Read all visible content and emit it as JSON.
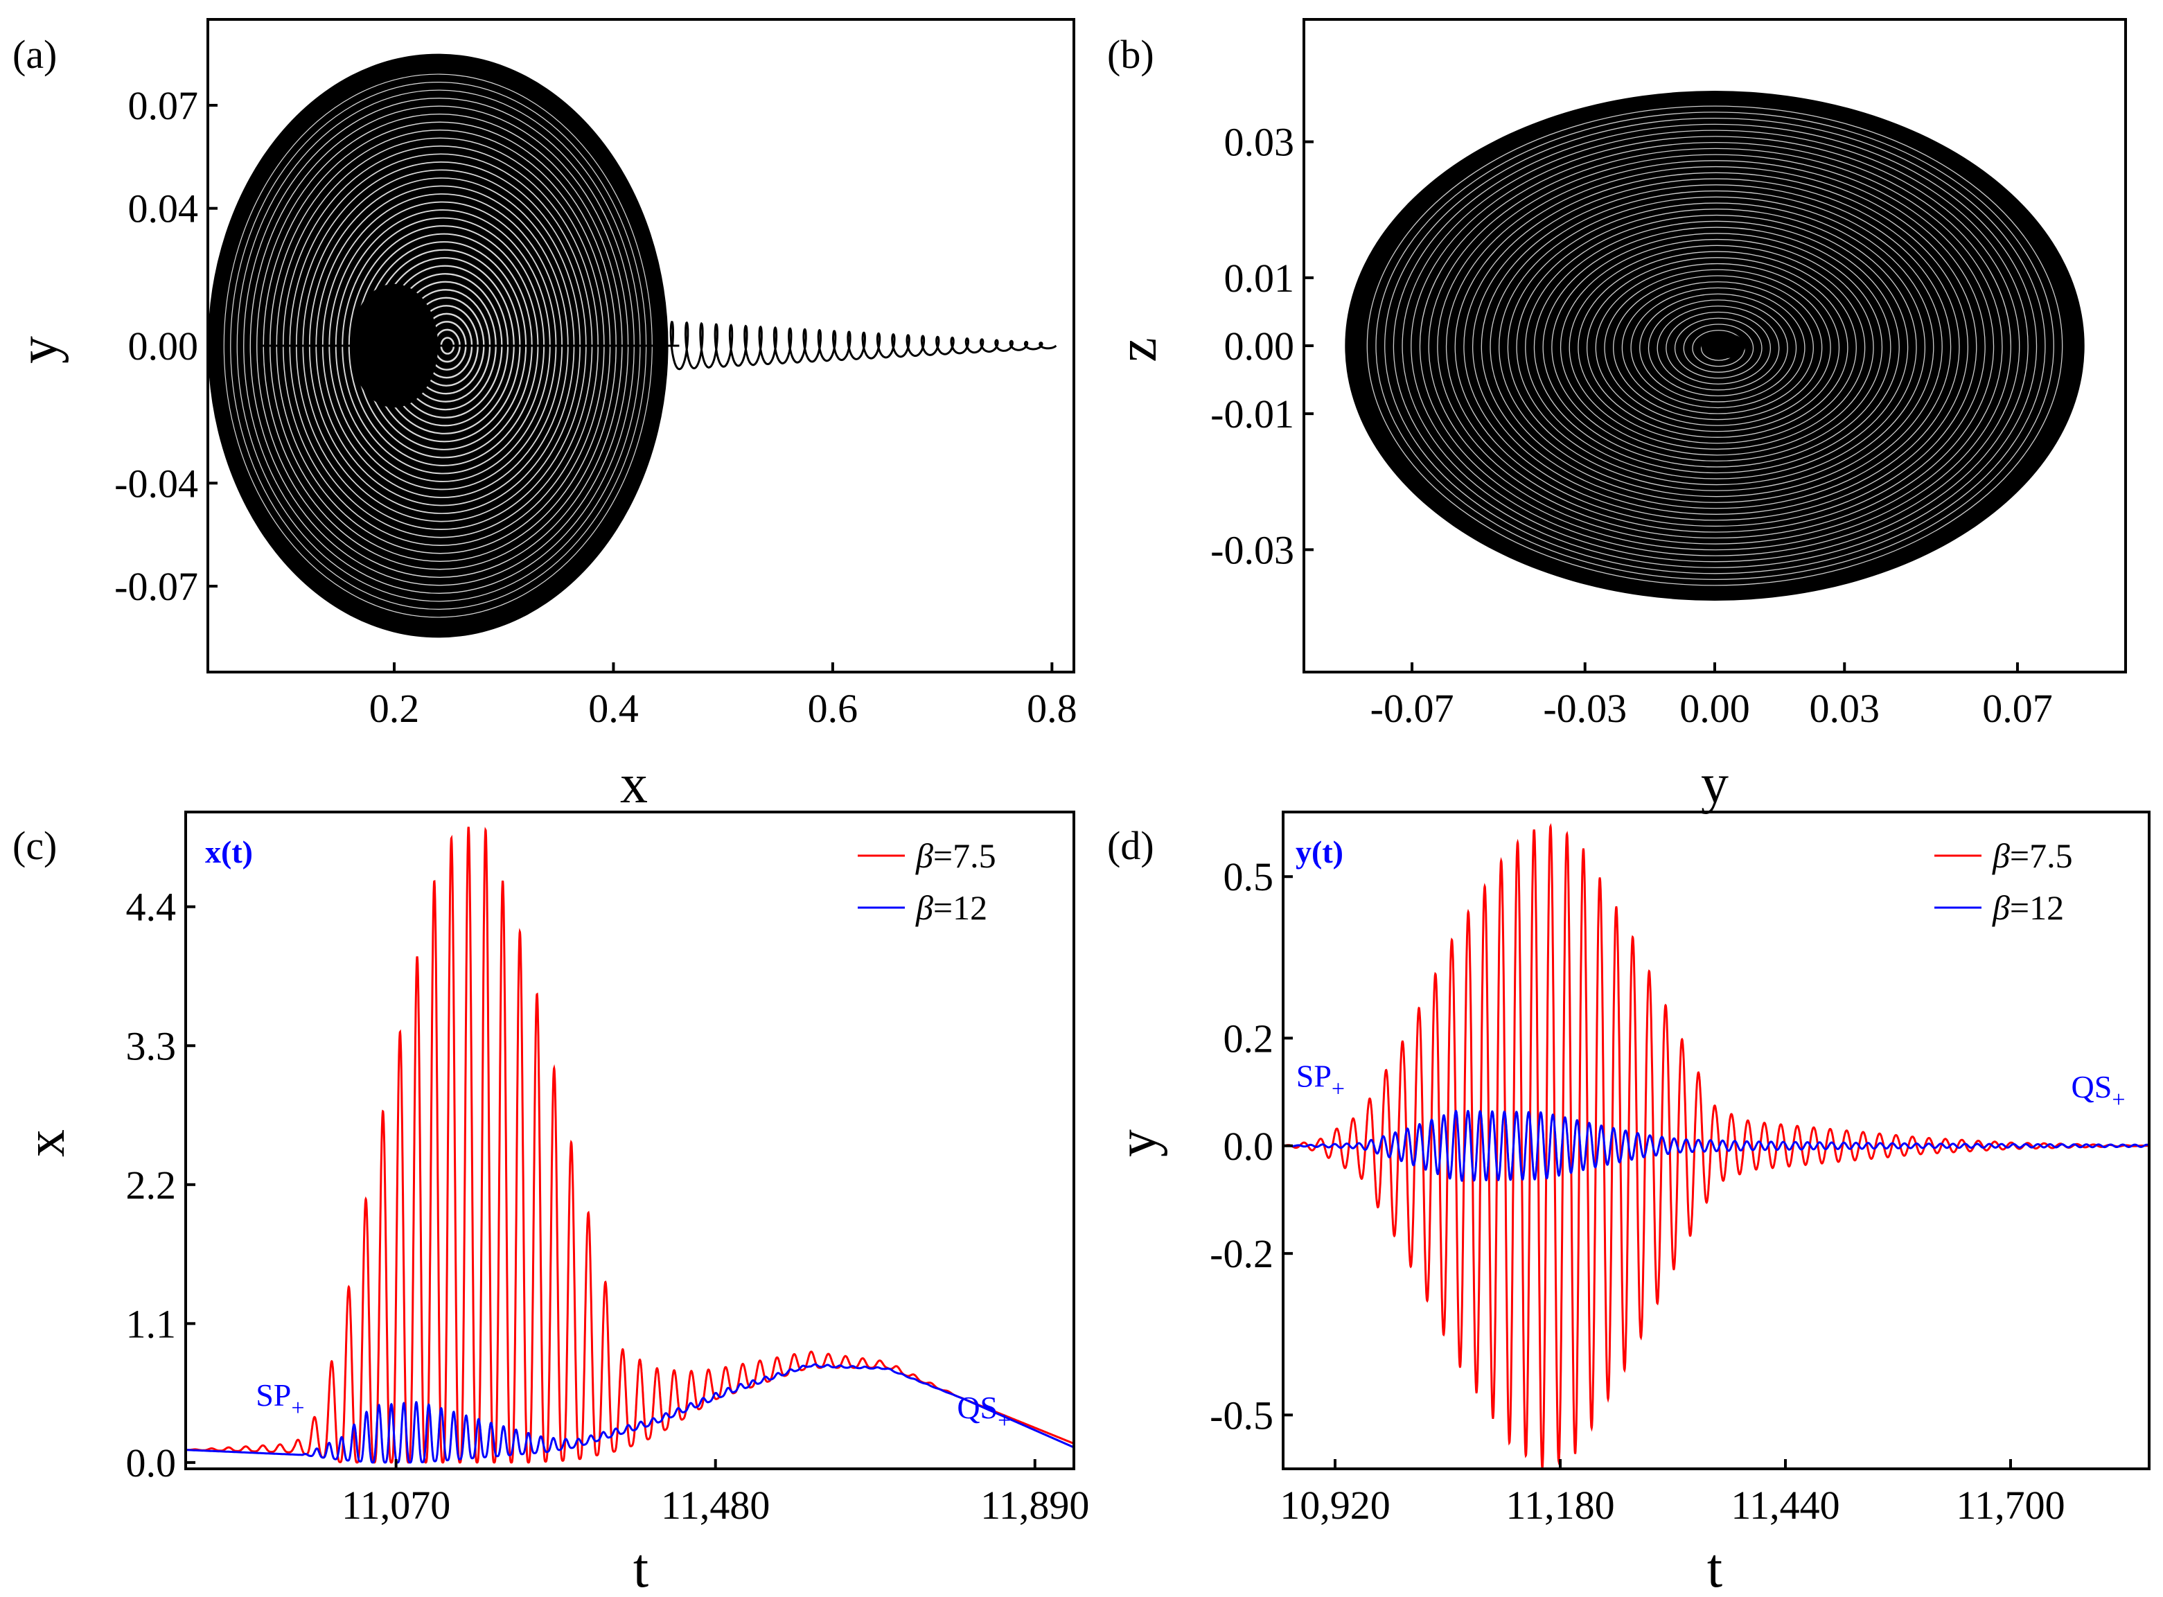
{
  "chart_data": [
    {
      "panel_label": "(a)",
      "type": "line",
      "description_series": "phase portrait x-y",
      "xlabel": "x",
      "ylabel": "y",
      "xlim": [
        0.03,
        0.82
      ],
      "ylim": [
        -0.095,
        0.095
      ],
      "xticks": [
        0.2,
        0.4,
        0.6,
        0.8
      ],
      "xtick_labels": [
        "0.2",
        "0.4",
        "0.6",
        "0.8"
      ],
      "yticks": [
        -0.07,
        -0.04,
        0.0,
        0.04,
        0.07
      ],
      "ytick_labels": [
        "-0.07",
        "-0.04",
        "0.00",
        "0.04",
        "0.07"
      ],
      "orbit": {
        "center_x": 0.24,
        "radius_x": 0.21,
        "radius_y": 0.085,
        "tail_end_x": 0.8,
        "tail_half_height": 0.007
      },
      "color": "#000000"
    },
    {
      "panel_label": "(b)",
      "type": "line",
      "description_series": "phase portrait y-z",
      "xlabel": "y",
      "ylabel": "z",
      "xlim": [
        -0.095,
        0.095
      ],
      "ylim": [
        -0.048,
        0.048
      ],
      "xticks": [
        -0.07,
        -0.03,
        0.0,
        0.03,
        0.07
      ],
      "xtick_labels": [
        "-0.07",
        "-0.03",
        "0.00",
        "0.03",
        "0.07"
      ],
      "yticks": [
        -0.03,
        -0.01,
        0.0,
        0.01,
        0.03
      ],
      "ytick_labels": [
        "-0.03",
        "-0.01",
        "0.00",
        "0.01",
        "0.03"
      ],
      "orbit": {
        "center_x": 0.0,
        "radius_x": 0.0855,
        "radius_y": 0.0375
      },
      "color": "#000000"
    },
    {
      "panel_label": "(c)",
      "type": "line",
      "corner_label": "x(t)",
      "xlabel": "t",
      "ylabel": "x",
      "xlim": [
        10800,
        11940
      ],
      "ylim": [
        -0.05,
        5.15
      ],
      "xticks": [
        11070,
        11480,
        11890
      ],
      "xtick_labels": [
        "11,070",
        "11,480",
        "11,890"
      ],
      "yticks": [
        0.0,
        1.1,
        2.2,
        3.3,
        4.4
      ],
      "ytick_labels": [
        "0.0",
        "1.1",
        "2.2",
        "3.3",
        "4.4"
      ],
      "series": [
        {
          "name": "β=7.5",
          "symbol": "β",
          "value_label": "=7.5",
          "color": "#ff0000",
          "envelope_points_t": [
            10800,
            10940,
            10970,
            11000,
            11060,
            11130,
            11180,
            11240,
            11300,
            11360,
            11400,
            11440,
            11480,
            11600,
            11700,
            11800,
            11940
          ],
          "envelope_points_peak": [
            0.1,
            0.15,
            0.4,
            1.1,
            3.0,
            4.9,
            5.1,
            4.0,
            2.4,
            0.9,
            0.75,
            0.72,
            0.74,
            0.88,
            0.8,
            0.5,
            0.15
          ],
          "baseline_points": [
            0.1,
            0.08,
            0.05,
            0.0,
            0.0,
            0.0,
            0.0,
            0.0,
            0.02,
            0.1,
            0.2,
            0.35,
            0.5,
            0.75,
            0.75,
            0.5,
            0.15
          ],
          "period": 22
        },
        {
          "name": "β=12",
          "symbol": "β",
          "value_label": "=12",
          "color": "#0000ff",
          "envelope_points_t": [
            10800,
            10950,
            11000,
            11040,
            11100,
            11200,
            11260,
            11300,
            11400,
            11500,
            11600,
            11700,
            11800,
            11940
          ],
          "envelope_points_peak": [
            0.1,
            0.06,
            0.2,
            0.45,
            0.48,
            0.3,
            0.2,
            0.18,
            0.35,
            0.6,
            0.78,
            0.75,
            0.5,
            0.12
          ],
          "baseline_points": [
            0.1,
            0.06,
            0.02,
            0.0,
            0.0,
            0.05,
            0.08,
            0.12,
            0.3,
            0.55,
            0.76,
            0.74,
            0.5,
            0.12
          ],
          "period": 16
        }
      ],
      "annotations": [
        {
          "text": "SP",
          "subscript": "+",
          "t": 10890,
          "value": 0.45
        },
        {
          "text": "QS",
          "subscript": "+",
          "t": 11790,
          "value": 0.35
        }
      ],
      "legend": "top-right"
    },
    {
      "panel_label": "(d)",
      "type": "line",
      "corner_label": "y(t)",
      "xlabel": "t",
      "ylabel": "y",
      "xlim": [
        10860,
        11860
      ],
      "ylim": [
        -0.6,
        0.62
      ],
      "xticks": [
        10920,
        11180,
        11440,
        11700
      ],
      "xtick_labels": [
        "10,920",
        "11,180",
        "11,440",
        "11,700"
      ],
      "yticks": [
        -0.5,
        -0.2,
        0.0,
        0.2,
        0.5
      ],
      "ytick_labels": [
        "-0.5",
        "-0.2",
        "0.0",
        "0.2",
        "0.5"
      ],
      "series": [
        {
          "name": "β=7.5",
          "symbol": "β",
          "value_label": "=7.5",
          "color": "#ff0000",
          "envelope_points_t": [
            10860,
            10900,
            10950,
            11000,
            11060,
            11120,
            11160,
            11200,
            11260,
            11320,
            11360,
            11400,
            11500,
            11600,
            11700,
            11860
          ],
          "envelope_amp": [
            0.0,
            0.01,
            0.06,
            0.2,
            0.4,
            0.55,
            0.6,
            0.57,
            0.4,
            0.2,
            0.07,
            0.045,
            0.03,
            0.015,
            0.006,
            0.0
          ],
          "period": 19
        },
        {
          "name": "β=12",
          "symbol": "β",
          "value_label": "=12",
          "color": "#0000ff",
          "envelope_points_t": [
            10860,
            10950,
            11000,
            11060,
            11160,
            11220,
            11280,
            11320,
            11400,
            11500,
            11600,
            11860
          ],
          "envelope_amp": [
            0.0,
            0.005,
            0.03,
            0.065,
            0.062,
            0.04,
            0.02,
            0.012,
            0.008,
            0.006,
            0.004,
            0.002
          ],
          "period": 14
        }
      ],
      "annotations": [
        {
          "text": "SP",
          "subscript": "+",
          "t": 10875,
          "value": 0.11
        },
        {
          "text": "QS",
          "subscript": "+",
          "t": 11770,
          "value": 0.09
        }
      ],
      "legend": "top-right"
    }
  ]
}
